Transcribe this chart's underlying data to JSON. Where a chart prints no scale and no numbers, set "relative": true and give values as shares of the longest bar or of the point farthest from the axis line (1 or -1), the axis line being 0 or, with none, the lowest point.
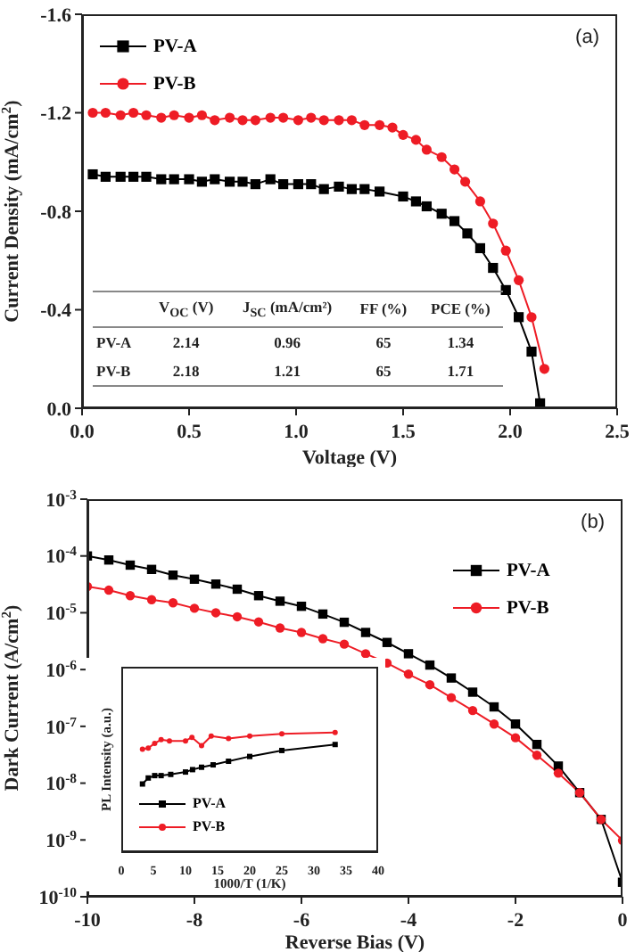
{
  "chart_data": [
    {
      "type": "line",
      "xlabel": "Voltage (V)",
      "ylabel": "Current Density (mA/cm$^{2}$)",
      "xlim": [
        0,
        2.5
      ],
      "xticks": [
        {
          "value": 0,
          "label": "0.0"
        },
        0.5,
        {
          "value": 1,
          "label": "1.0"
        },
        1.5,
        {
          "value": 2,
          "label": "2.0"
        },
        2.5
      ],
      "ylim": [
        0,
        -1.6
      ],
      "yticks": [
        {
          "value": 0,
          "label": "0.0"
        },
        -0.4,
        -0.8,
        -1.2,
        -1.6
      ],
      "legend": "top left",
      "grid": false,
      "annotations": [
        "(a)",
        "V$_{OC}$ (V)",
        "J$_{SC}$ (mA/cm²)",
        "FF (%)",
        "PCE (%)",
        "PV-A",
        "2.14",
        "0.96",
        "65",
        "1.34",
        "PV-B",
        "2.18",
        "1.21",
        "65",
        "1.71"
      ],
      "series": [
        {
          "name": "PV-A",
          "color": "#000000",
          "marker": "square",
          "x": [
            0.05,
            0.11,
            0.18,
            0.24,
            0.3,
            0.37,
            0.43,
            0.5,
            0.56,
            0.62,
            0.69,
            0.75,
            0.81,
            0.88,
            0.94,
            1.01,
            1.07,
            1.13,
            1.2,
            1.26,
            1.32,
            1.39,
            1.5,
            1.56,
            1.61,
            1.68,
            1.74,
            1.8,
            1.86,
            1.92,
            1.98,
            2.04,
            2.1,
            2.14
          ],
          "values": [
            -0.95,
            -0.94,
            -0.94,
            -0.94,
            -0.94,
            -0.93,
            -0.93,
            -0.93,
            -0.92,
            -0.93,
            -0.92,
            -0.92,
            -0.91,
            -0.93,
            -0.91,
            -0.91,
            -0.91,
            -0.89,
            -0.9,
            -0.89,
            -0.89,
            -0.88,
            -0.86,
            -0.84,
            -0.82,
            -0.79,
            -0.76,
            -0.71,
            -0.65,
            -0.57,
            -0.48,
            -0.37,
            -0.23,
            -0.02
          ]
        },
        {
          "name": "PV-B",
          "color": "#ee1c25",
          "marker": "circle",
          "x": [
            0.05,
            0.11,
            0.18,
            0.24,
            0.3,
            0.37,
            0.43,
            0.5,
            0.56,
            0.62,
            0.69,
            0.75,
            0.81,
            0.88,
            0.94,
            1.01,
            1.07,
            1.13,
            1.2,
            1.26,
            1.32,
            1.39,
            1.45,
            1.5,
            1.56,
            1.61,
            1.68,
            1.74,
            1.79,
            1.86,
            1.92,
            1.98,
            2.04,
            2.1,
            2.16
          ],
          "values": [
            -1.2,
            -1.2,
            -1.19,
            -1.2,
            -1.19,
            -1.18,
            -1.19,
            -1.18,
            -1.19,
            -1.17,
            -1.18,
            -1.17,
            -1.17,
            -1.18,
            -1.18,
            -1.17,
            -1.18,
            -1.17,
            -1.17,
            -1.17,
            -1.15,
            -1.15,
            -1.14,
            -1.11,
            -1.09,
            -1.05,
            -1.02,
            -0.97,
            -0.92,
            -0.84,
            -0.75,
            -0.64,
            -0.52,
            -0.37,
            -0.16
          ]
        }
      ]
    },
    {
      "type": "line",
      "xlabel": "Reverse Bias (V)",
      "ylabel": "Dark Current (A/cm$^{2}$)",
      "log": "y",
      "xlim": [
        -10,
        0
      ],
      "xticks": [
        -10,
        -8,
        -6,
        -4,
        -2,
        0
      ],
      "ylim": [
        1e-10,
        0.001
      ],
      "yticks": [
        {
          "value": 1e-10,
          "label": "10$^{-10}$"
        },
        {
          "value": 1e-09,
          "label": "10$^{-9}$"
        },
        {
          "value": 1e-08,
          "label": "10$^{-8}$"
        },
        {
          "value": 1e-07,
          "label": "10$^{-7}$"
        },
        {
          "value": 1e-06,
          "label": "10$^{-6}$"
        },
        {
          "value": 1e-05,
          "label": "10$^{-5}$"
        },
        {
          "value": 0.0001,
          "label": "10$^{-4}$"
        },
        {
          "value": 0.001,
          "label": "10$^{-3}$"
        }
      ],
      "legend": "top right",
      "grid": false,
      "annotations": [
        "(b)"
      ],
      "x": [
        -10,
        -9.6,
        -9.2,
        -8.8,
        -8.4,
        -8,
        -7.6,
        -7.2,
        -6.8,
        -6.4,
        -6,
        -5.6,
        -5.2,
        -4.8,
        -4.4,
        -4,
        -3.6,
        -3.2,
        -2.8,
        -2.4,
        -2,
        -1.6,
        -1.2,
        -0.8,
        -0.4,
        0
      ],
      "series": [
        {
          "name": "PV-A",
          "color": "#000000",
          "marker": "square",
          "values": [
            0.0001,
            8.5e-05,
            6.9e-05,
            5.8e-05,
            4.6e-05,
            3.9e-05,
            3.2e-05,
            2.6e-05,
            2e-05,
            1.6e-05,
            1.3e-05,
            9.5e-06,
            6.8e-06,
            4.5e-06,
            3e-06,
            1.9e-06,
            1.2e-06,
            7.1e-07,
            4e-07,
            2.2e-07,
            1.1e-07,
            4.8e-08,
            2e-08,
            6.8e-09,
            2.3e-09,
            1.8e-10
          ]
        },
        {
          "name": "PV-B",
          "color": "#ee1c25",
          "marker": "circle",
          "values": [
            2.9e-05,
            2.5e-05,
            2e-05,
            1.7e-05,
            1.5e-05,
            1.2e-05,
            1e-05,
            8.5e-06,
            6.9e-06,
            5.4e-06,
            4.5e-06,
            3.5e-06,
            2.8e-06,
            1.9e-06,
            1.3e-06,
            8.3e-07,
            5.4e-07,
            3.2e-07,
            1.9e-07,
            1.1e-07,
            6.3e-08,
            3.1e-08,
            1.5e-08,
            6.8e-09,
            2.3e-09,
            9.8e-10
          ]
        }
      ]
    },
    {
      "type": "line",
      "relative": true,
      "xlabel": "1000/T (1/K)",
      "ylabel": "PL Intensity (a.u.)",
      "xlim": [
        0,
        40
      ],
      "xticks": [
        0,
        5,
        10,
        15,
        20,
        25,
        30,
        35,
        40
      ],
      "tick_labels": "x",
      "legend": "bottom left",
      "grid": false,
      "series": [
        {
          "name": "PV-A",
          "color": "#000000",
          "marker": "square",
          "x": [
            3.3,
            4.2,
            5.2,
            6.2,
            7.7,
            10,
            11.1,
            12.5,
            14.3,
            16.7,
            20,
            25,
            33.3
          ],
          "values": [
            0.57,
            0.62,
            0.64,
            0.64,
            0.65,
            0.67,
            0.69,
            0.71,
            0.73,
            0.76,
            0.8,
            0.85,
            0.9
          ]
        },
        {
          "name": "PV-B",
          "color": "#ee1c25",
          "marker": "circle",
          "x": [
            3.3,
            4.2,
            5.2,
            6.2,
            7.5,
            10,
            11,
            12.5,
            14,
            16.7,
            20,
            25,
            33.3
          ],
          "values": [
            0.86,
            0.87,
            0.91,
            0.94,
            0.93,
            0.93,
            0.96,
            0.89,
            0.97,
            0.95,
            0.97,
            0.99,
            1.0
          ]
        }
      ]
    }
  ]
}
